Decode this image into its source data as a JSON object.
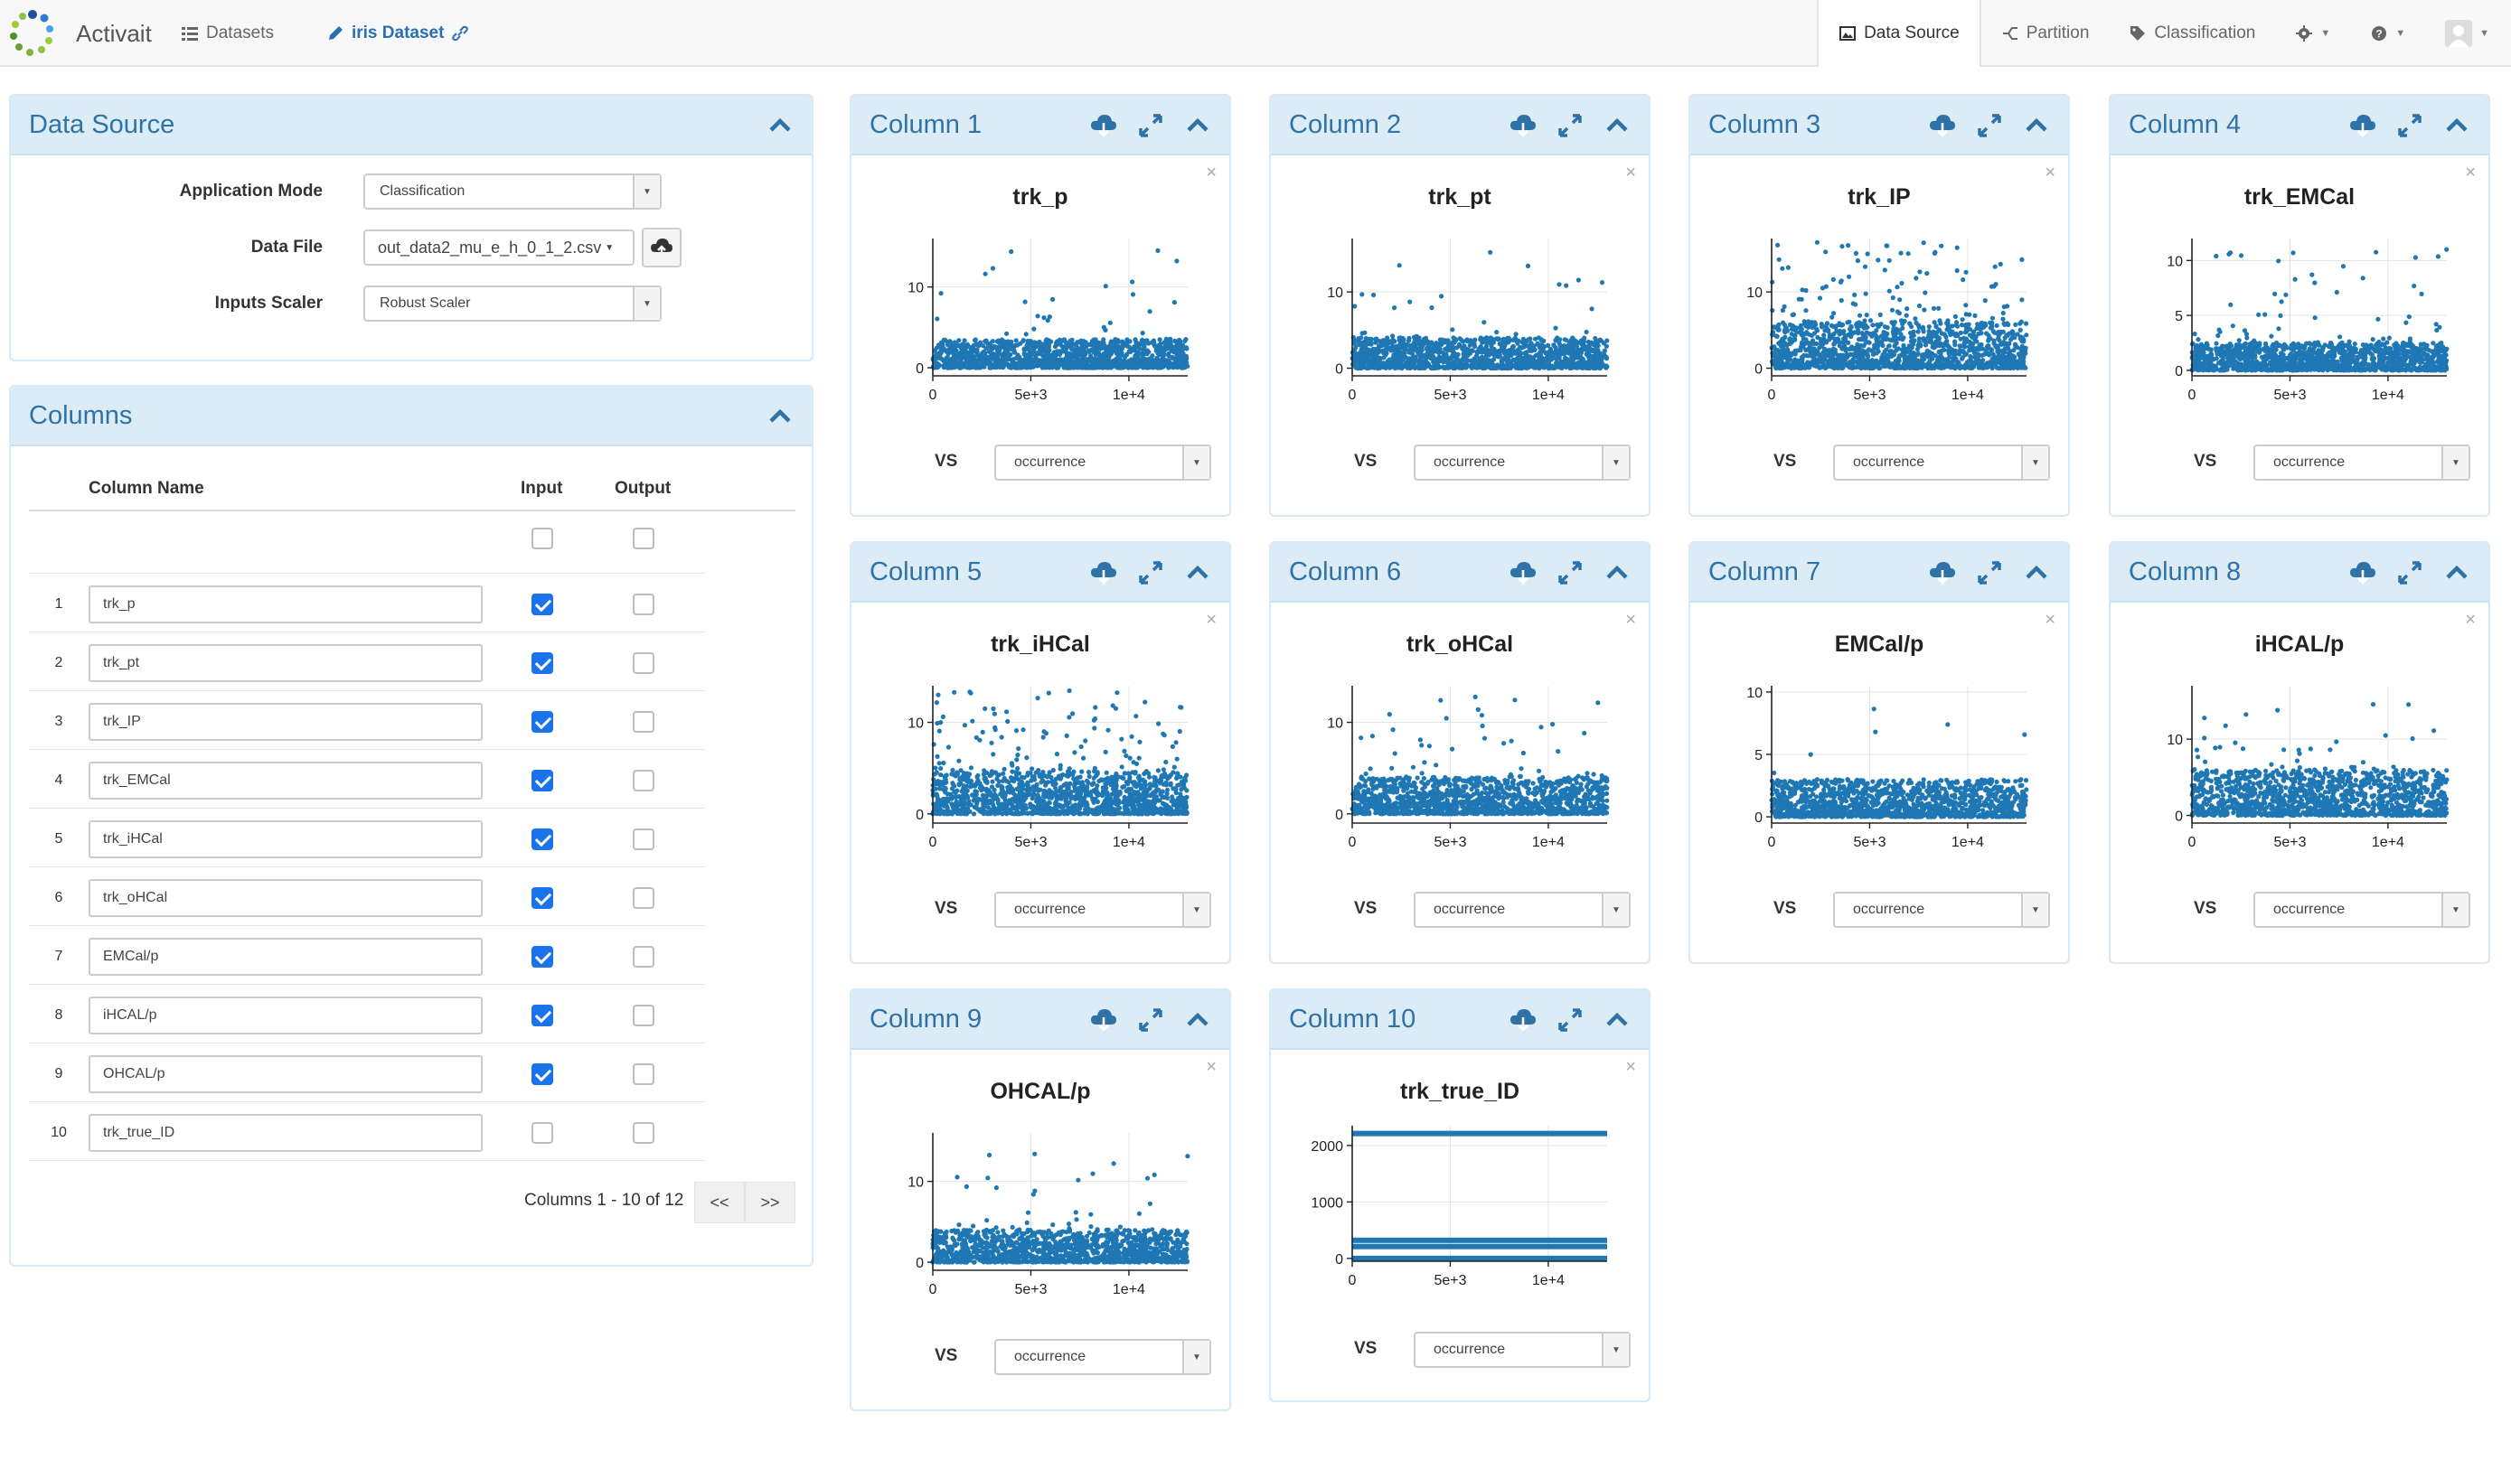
{
  "app": {
    "name": "Activait"
  },
  "nav": {
    "datasets_label": "Datasets",
    "dataset_label": "iris Dataset",
    "tabs": [
      {
        "label": "Data Source",
        "icon": "image-icon",
        "active": true
      },
      {
        "label": "Partition",
        "icon": "split-icon",
        "active": false
      },
      {
        "label": "Classification",
        "icon": "tag-icon",
        "active": false
      }
    ]
  },
  "data_source": {
    "title": "Data Source",
    "application_mode_label": "Application Mode",
    "application_mode_value": "Classification",
    "data_file_label": "Data File",
    "data_file_value": "out_data2_mu_e_h_0_1_2.csv",
    "inputs_scaler_label": "Inputs Scaler",
    "inputs_scaler_value": "Robust Scaler"
  },
  "columns_panel": {
    "title": "Columns",
    "headers": {
      "name": "Column Name",
      "input": "Input",
      "output": "Output"
    },
    "rows": [
      {
        "num": "1",
        "name": "trk_p",
        "input": true,
        "output": false
      },
      {
        "num": "2",
        "name": "trk_pt",
        "input": true,
        "output": false
      },
      {
        "num": "3",
        "name": "trk_IP",
        "input": true,
        "output": false
      },
      {
        "num": "4",
        "name": "trk_EMCal",
        "input": true,
        "output": false
      },
      {
        "num": "5",
        "name": "trk_iHCal",
        "input": true,
        "output": false
      },
      {
        "num": "6",
        "name": "trk_oHCal",
        "input": true,
        "output": false
      },
      {
        "num": "7",
        "name": "EMCal/p",
        "input": true,
        "output": false
      },
      {
        "num": "8",
        "name": "iHCAL/p",
        "input": true,
        "output": false
      },
      {
        "num": "9",
        "name": "OHCAL/p",
        "input": true,
        "output": false
      },
      {
        "num": "10",
        "name": "trk_true_ID",
        "input": false,
        "output": false
      }
    ],
    "pager_text": "Columns 1 - 10 of 12",
    "prev_label": "<<",
    "next_label": ">>"
  },
  "vs_label": "VS",
  "colors": {
    "points": "#1f77b4",
    "header_bg": "#dcecf6",
    "title": "#2f72a8",
    "checkbox": "#1a73e8"
  },
  "chart_data": [
    {
      "type": "scatter",
      "panel": "Column 1",
      "title": "trk_p",
      "xlabel": "occurrence",
      "xticks": [
        "0",
        "5e+3",
        "1e+4"
      ],
      "yticks": [
        "0",
        "10"
      ],
      "ylim": [
        -1,
        16
      ],
      "band_max": 3.5,
      "outlier_max": 15.5,
      "outliers": 30,
      "vs": "occurrence"
    },
    {
      "type": "scatter",
      "panel": "Column 2",
      "title": "trk_pt",
      "xlabel": "occurrence",
      "xticks": [
        "0",
        "5e+3",
        "1e+4"
      ],
      "yticks": [
        "0",
        "10"
      ],
      "ylim": [
        -1,
        17
      ],
      "band_max": 4,
      "outlier_max": 15.5,
      "outliers": 28,
      "vs": "occurrence"
    },
    {
      "type": "scatter",
      "panel": "Column 3",
      "title": "trk_IP",
      "xlabel": "occurrence",
      "xticks": [
        "0",
        "5e+3",
        "1e+4"
      ],
      "yticks": [
        "0",
        "10"
      ],
      "ylim": [
        -1,
        17
      ],
      "band_max": 6,
      "outlier_max": 16.5,
      "outliers": 110,
      "vs": "occurrence"
    },
    {
      "type": "scatter",
      "panel": "Column 4",
      "title": "trk_EMCal",
      "xlabel": "occurrence",
      "xticks": [
        "0",
        "5e+3",
        "1e+4"
      ],
      "yticks": [
        "0",
        "5",
        "10"
      ],
      "ylim": [
        -0.5,
        12
      ],
      "band_max": 2.5,
      "outlier_max": 11.2,
      "outliers": 60,
      "vs": "occurrence"
    },
    {
      "type": "scatter",
      "panel": "Column 5",
      "title": "trk_iHCal",
      "xlabel": "occurrence",
      "xticks": [
        "0",
        "5e+3",
        "1e+4"
      ],
      "yticks": [
        "0",
        "10"
      ],
      "ylim": [
        -1,
        14
      ],
      "band_max": 4.5,
      "outlier_max": 13.5,
      "outliers": 120,
      "vs": "occurrence"
    },
    {
      "type": "scatter",
      "panel": "Column 6",
      "title": "trk_oHCal",
      "xlabel": "occurrence",
      "xticks": [
        "0",
        "5e+3",
        "1e+4"
      ],
      "yticks": [
        "0",
        "10"
      ],
      "ylim": [
        -1,
        14
      ],
      "band_max": 4,
      "outlier_max": 13.5,
      "outliers": 45,
      "vs": "occurrence"
    },
    {
      "type": "scatter",
      "panel": "Column 7",
      "title": "EMCal/p",
      "xlabel": "occurrence",
      "xticks": [
        "0",
        "5e+3",
        "1e+4"
      ],
      "yticks": [
        "0",
        "5",
        "10"
      ],
      "ylim": [
        -0.5,
        10.5
      ],
      "band_max": 3,
      "outlier_max": 10.3,
      "outliers": 6,
      "vs": "occurrence"
    },
    {
      "type": "scatter",
      "panel": "Column 8",
      "title": "iHCAL/p",
      "xlabel": "occurrence",
      "xticks": [
        "0",
        "5e+3",
        "1e+4"
      ],
      "yticks": [
        "0",
        "10"
      ],
      "ylim": [
        -1,
        17
      ],
      "band_max": 6,
      "outlier_max": 16,
      "outliers": 35,
      "vs": "occurrence"
    },
    {
      "type": "scatter",
      "panel": "Column 9",
      "title": "OHCAL/p",
      "xlabel": "occurrence",
      "xticks": [
        "0",
        "5e+3",
        "1e+4"
      ],
      "yticks": [
        "0",
        "10"
      ],
      "ylim": [
        -1,
        16
      ],
      "band_max": 4,
      "outlier_max": 14.5,
      "outliers": 35,
      "vs": "occurrence"
    },
    {
      "type": "scatter",
      "panel": "Column 10",
      "title": "trk_true_ID",
      "xlabel": "occurrence",
      "xticks": [
        "0",
        "5e+3",
        "1e+4"
      ],
      "yticks": [
        "0",
        "1000",
        "2000"
      ],
      "ylim": [
        -50,
        2350
      ],
      "levels": [
        0,
        211,
        321,
        2212
      ],
      "vs": "occurrence"
    }
  ]
}
